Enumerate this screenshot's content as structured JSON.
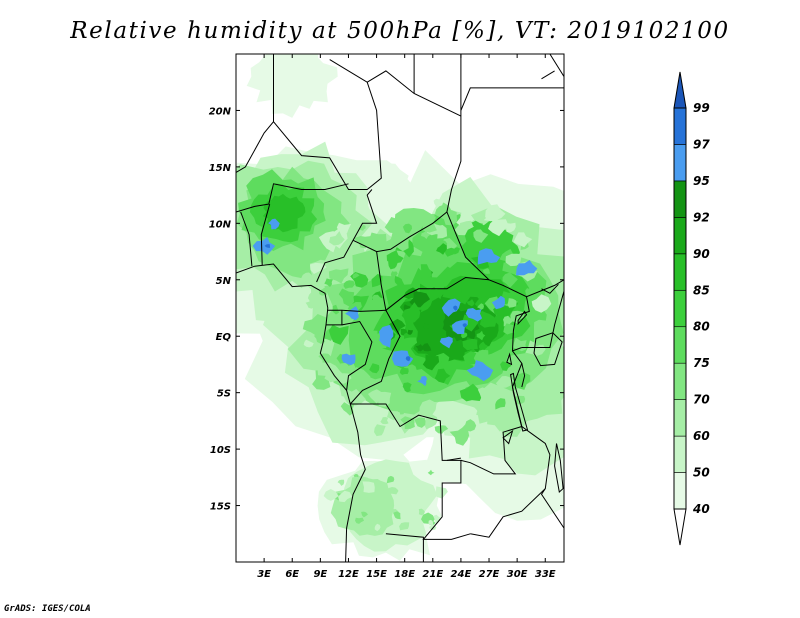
{
  "title": "Relative humidity at 500hPa [%], VT: 2019102100",
  "credit": "GrADS: IGES/COLA",
  "map": {
    "lon_range": [
      0,
      35
    ],
    "lat_range": [
      -20,
      25
    ],
    "lon_ticks": [
      {
        "v": 3,
        "label": "3E"
      },
      {
        "v": 6,
        "label": "6E"
      },
      {
        "v": 9,
        "label": "9E"
      },
      {
        "v": 12,
        "label": "12E"
      },
      {
        "v": 15,
        "label": "15E"
      },
      {
        "v": 18,
        "label": "18E"
      },
      {
        "v": 21,
        "label": "21E"
      },
      {
        "v": 24,
        "label": "24E"
      },
      {
        "v": 27,
        "label": "27E"
      },
      {
        "v": 30,
        "label": "30E"
      },
      {
        "v": 33,
        "label": "33E"
      }
    ],
    "lat_ticks": [
      {
        "v": 20,
        "label": "20N"
      },
      {
        "v": 15,
        "label": "15N"
      },
      {
        "v": 10,
        "label": "10N"
      },
      {
        "v": 5,
        "label": "5N"
      },
      {
        "v": 0,
        "label": "EQ"
      },
      {
        "v": -5,
        "label": "5S"
      },
      {
        "v": -10,
        "label": "10S"
      },
      {
        "v": -15,
        "label": "15S"
      }
    ]
  },
  "colorbar": {
    "levels": [
      "40",
      "50",
      "60",
      "70",
      "75",
      "80",
      "85",
      "90",
      "92",
      "95",
      "97",
      "99"
    ],
    "colors": [
      "#ffffff",
      "#e6fae6",
      "#c8f5c8",
      "#a6eea6",
      "#82e682",
      "#5edc5e",
      "#3ccf3c",
      "#28bf28",
      "#1aa91a",
      "#149414",
      "#4a9df0",
      "#2673d8",
      "#1b56b8"
    ]
  }
}
